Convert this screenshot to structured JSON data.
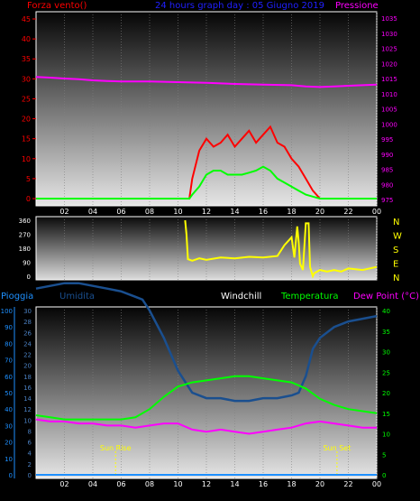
{
  "colors": {
    "wind": "#ff0000",
    "gust_avg": "#00ff00",
    "pressure": "#ff00ff",
    "direction": "#ffff00",
    "humidity": "#1a4f8f",
    "temperature": "#00ff00",
    "dewpoint": "#ff00ff",
    "rain": "#1e90ff",
    "title": "#0000cc",
    "annot": "#ffff00"
  },
  "headers": {
    "wind_label": "Forza vento()",
    "title": "24 hours graph day : 05 Giugno 2019",
    "pressure_label": "Pressione",
    "rain_label": "Pioggia",
    "humidity_label": "Umidita",
    "windchill_label": "Windchill",
    "temperature_label": "Temperatura",
    "dewpoint_label": "Dew Point (°C)"
  },
  "chart_data": [
    {
      "type": "line",
      "panel": "wind-pressure",
      "x_ticks": [
        "02",
        "04",
        "06",
        "08",
        "10",
        "12",
        "14",
        "16",
        "18",
        "20",
        "22",
        "00"
      ],
      "y_left_ticks": [
        "0",
        "5",
        "10",
        "15",
        "20",
        "25",
        "30",
        "35",
        "40",
        "45"
      ],
      "y_left_range": [
        0,
        45
      ],
      "y_right_ticks": [
        "975",
        "980",
        "985",
        "990",
        "995",
        "1000",
        "1005",
        "1010",
        "1015",
        "1020",
        "1025",
        "1030",
        "1035"
      ],
      "y_right_range": [
        975,
        1035
      ],
      "series": [
        {
          "key": "wind",
          "x": [
            0,
            10.8,
            11,
            11.5,
            12,
            12.5,
            13,
            13.5,
            14,
            14.5,
            15,
            15.5,
            16,
            16.5,
            17,
            17.5,
            18,
            18.5,
            19,
            19.5,
            20,
            24
          ],
          "values": [
            0,
            0,
            5,
            12,
            15,
            13,
            14,
            16,
            13,
            15,
            17,
            14,
            16,
            18,
            14,
            13,
            10,
            8,
            5,
            2,
            0,
            0
          ]
        },
        {
          "key": "gust_avg",
          "x": [
            0,
            10.8,
            11,
            11.5,
            12,
            12.5,
            13,
            13.5,
            14,
            14.5,
            15,
            15.5,
            16,
            16.5,
            17,
            17.5,
            18,
            18.5,
            19,
            19.5,
            20,
            24
          ],
          "values": [
            0,
            0,
            1,
            3,
            6,
            7,
            7,
            6,
            6,
            6,
            6.5,
            7,
            8,
            7,
            5,
            4,
            3,
            2,
            1,
            0.5,
            0,
            0
          ]
        },
        {
          "key": "pressure",
          "x": [
            0,
            1,
            2,
            3,
            4,
            5,
            6,
            8,
            10,
            12,
            14,
            16,
            18,
            19,
            20,
            21,
            22,
            23,
            24
          ],
          "values": [
            1015.5,
            1015.3,
            1015,
            1014.8,
            1014.4,
            1014.2,
            1014,
            1014,
            1013.8,
            1013.6,
            1013.2,
            1013,
            1012.8,
            1012.4,
            1012.2,
            1012.4,
            1012.6,
            1012.8,
            1013
          ]
        }
      ]
    },
    {
      "type": "line",
      "panel": "wind-direction",
      "x_ticks": [
        "02",
        "04",
        "06",
        "08",
        "10",
        "12",
        "14",
        "16",
        "18",
        "20",
        "22",
        "00"
      ],
      "y_left_ticks": [
        "0",
        "90",
        "180",
        "270",
        "360"
      ],
      "y_right_labels": [
        "N",
        "W",
        "S",
        "E",
        "N"
      ],
      "y_range": [
        0,
        360
      ],
      "series": [
        {
          "key": "direction",
          "x": [
            10.5,
            10.6,
            10.7,
            11,
            11.5,
            12,
            13,
            14,
            15,
            16,
            17,
            17.5,
            18,
            18.2,
            18.4,
            18.5,
            18.6,
            18.8,
            19,
            19.2,
            19.3,
            19.5,
            19.6,
            20,
            20.5,
            21,
            21.5,
            22,
            23,
            24
          ],
          "values": [
            360,
            270,
            110,
            100,
            115,
            105,
            120,
            115,
            125,
            120,
            130,
            200,
            250,
            120,
            320,
            220,
            80,
            40,
            340,
            340,
            60,
            0,
            20,
            40,
            30,
            40,
            30,
            50,
            40,
            60
          ]
        }
      ]
    },
    {
      "type": "line",
      "panel": "temperature-humidity",
      "x_ticks": [
        "02",
        "04",
        "06",
        "08",
        "10",
        "12",
        "14",
        "16",
        "18",
        "20",
        "22",
        "00"
      ],
      "y_left_rain_ticks": [
        "0",
        "10",
        "20",
        "30",
        "40",
        "50",
        "60",
        "70",
        "80",
        "90",
        "100"
      ],
      "y_left_humidity_ticks": [
        "0",
        "2",
        "4",
        "6",
        "8",
        "10",
        "12",
        "14",
        "16",
        "18",
        "20",
        "22",
        "24",
        "26",
        "28",
        "30"
      ],
      "y_right_ticks": [
        "0",
        "5",
        "10",
        "15",
        "20",
        "25",
        "30",
        "35",
        "40"
      ],
      "y_right_range": [
        0,
        40
      ],
      "annotations": [
        "Sun Rise",
        "Sun Set"
      ],
      "series": [
        {
          "key": "humidity",
          "x": [
            0,
            1,
            2,
            3,
            4,
            5,
            6,
            7,
            7.5,
            8,
            9,
            10,
            10.5,
            11,
            12,
            13,
            14,
            15,
            16,
            17,
            18,
            18.5,
            19,
            19.5,
            20,
            21,
            22,
            23,
            24
          ],
          "values": [
            34,
            34.5,
            35,
            35,
            34.5,
            34,
            33.5,
            32.5,
            32,
            30,
            25,
            19,
            17,
            15,
            14,
            14,
            13.5,
            13.5,
            14,
            14,
            14.5,
            15,
            18,
            23,
            25,
            27,
            28,
            28.5,
            29
          ]
        },
        {
          "key": "temperature",
          "x": [
            0,
            1,
            2,
            3,
            4,
            5,
            6,
            7,
            8,
            9,
            10,
            11,
            12,
            13,
            14,
            15,
            16,
            17,
            18,
            19,
            20,
            21,
            22,
            23,
            24
          ],
          "values": [
            14.5,
            14,
            13.5,
            13.5,
            13.5,
            13.5,
            13.5,
            14,
            16,
            19,
            21.5,
            22.5,
            23,
            23.5,
            24,
            24,
            23.5,
            23,
            22.5,
            21,
            18.5,
            17,
            16,
            15.5,
            15
          ]
        },
        {
          "key": "dewpoint",
          "x": [
            0,
            1,
            2,
            3,
            4,
            5,
            6,
            7,
            8,
            9,
            10,
            11,
            12,
            13,
            14,
            15,
            16,
            17,
            18,
            19,
            20,
            21,
            22,
            23,
            24
          ],
          "values": [
            13.5,
            13,
            13,
            12.5,
            12.5,
            12,
            12,
            11.5,
            12,
            12.5,
            12.5,
            11,
            10.5,
            11,
            10.5,
            10,
            10.5,
            11,
            11.5,
            12.5,
            13,
            12.5,
            12,
            11.5,
            11.5
          ]
        },
        {
          "key": "rain",
          "x": [
            0,
            24
          ],
          "values": [
            0,
            0
          ]
        }
      ]
    }
  ]
}
